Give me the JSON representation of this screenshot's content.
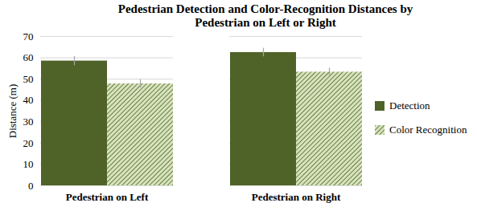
{
  "chart_data": {
    "type": "bar",
    "title": "Pedestrian Detection and Color-Recognition Distances by Pedestrian on Left or Right",
    "ylabel": "Distance (m)",
    "categories": [
      "Pedestrian on Left",
      "Pedestrian on Right"
    ],
    "series": [
      {
        "name": "Detection",
        "color": "#4f6228",
        "values": [
          58.5,
          62.5
        ],
        "errors": [
          2.2,
          2.0
        ]
      },
      {
        "name": "Color Recognition",
        "color": "#d7e4bd",
        "values": [
          47.8,
          53.3
        ],
        "errors": [
          2.0,
          1.9
        ]
      }
    ],
    "ylim": [
      0,
      70
    ],
    "yticks": [
      0,
      10,
      20,
      30,
      40,
      50,
      60,
      70
    ],
    "grid": true,
    "legend": "right"
  }
}
